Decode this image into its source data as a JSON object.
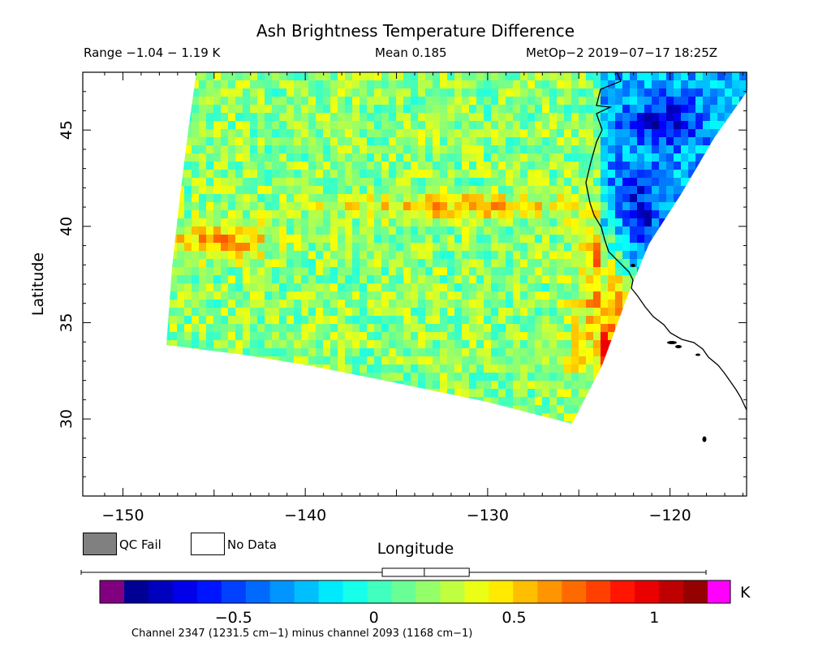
{
  "title": "Ash Brightness Temperature Difference",
  "range_text": "Range −1.04 − 1.19 K",
  "mean_text": "Mean 0.185",
  "satellite_text": "MetOp−2 2019−07−17 18:25Z",
  "legend": {
    "qc_fail": "QC Fail",
    "no_data": "No Data"
  },
  "footer": "Channel 2347 (1231.5 cm−1) minus channel 2093 (1168 cm−1)",
  "colorbar": {
    "unit": "K",
    "ticks": [
      {
        "value": -0.5,
        "label": "−0.5"
      },
      {
        "value": 0,
        "label": "0"
      },
      {
        "value": 0.5,
        "label": "0.5"
      },
      {
        "value": 1,
        "label": "1"
      }
    ],
    "min": -0.89,
    "max": 1.19,
    "low_color": "#800080",
    "high_color": "#ff00ff",
    "box_stats": {
      "whisker_min": -1.04,
      "q1": 0.03,
      "median": 0.18,
      "q3": 0.34,
      "whisker_max": 1.19
    }
  },
  "chart_data": {
    "type": "heatmap",
    "title": "Ash Brightness Temperature Difference",
    "xlabel": "Longitude",
    "ylabel": "Latitude",
    "xlim": [
      -152.2,
      -115.8
    ],
    "ylim": [
      26,
      48
    ],
    "x_ticks": [
      {
        "value": -150,
        "label": "−150"
      },
      {
        "value": -140,
        "label": "−140"
      },
      {
        "value": -130,
        "label": "−130"
      },
      {
        "value": -120,
        "label": "−120"
      }
    ],
    "y_ticks": [
      {
        "value": 30,
        "label": "30"
      },
      {
        "value": 35,
        "label": "35"
      },
      {
        "value": 40,
        "label": "40"
      },
      {
        "value": 45,
        "label": "45"
      }
    ],
    "units": "K",
    "value_range": [
      -1.04,
      1.19
    ],
    "mean": 0.185,
    "swath": {
      "lon": [
        -146.2,
        -125.5
      ],
      "lat": [
        34.0,
        48.0
      ]
    }
  }
}
